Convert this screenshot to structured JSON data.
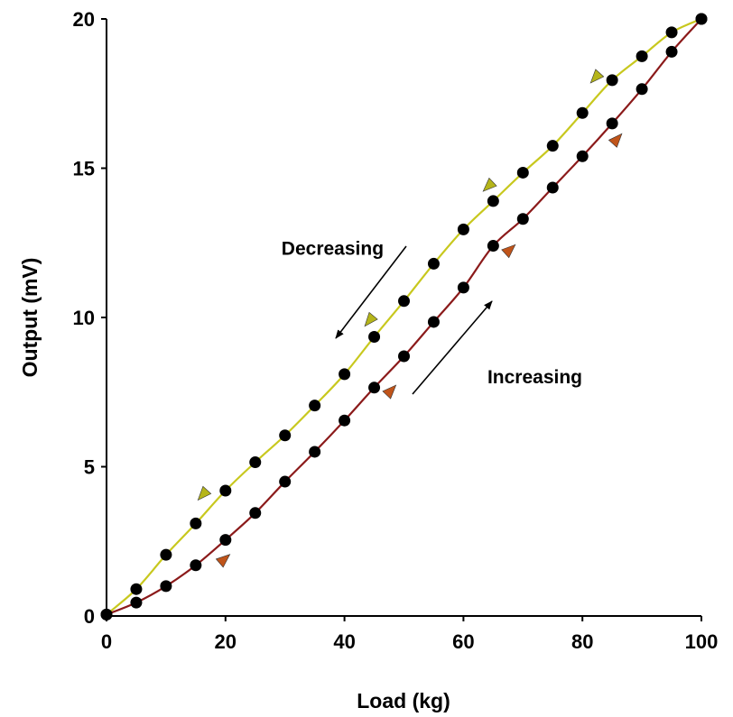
{
  "chart_data": {
    "type": "line",
    "xlabel": "Load (kg)",
    "ylabel": "Output (mV)",
    "xlim": [
      0,
      100
    ],
    "ylim": [
      0,
      20
    ],
    "xticks": [
      0,
      20,
      40,
      60,
      80,
      100
    ],
    "yticks": [
      0,
      5,
      10,
      15,
      20
    ],
    "grid": false,
    "series": [
      {
        "name": "Increasing",
        "color": "#8b1a1a",
        "marker_color": "#000000",
        "direction_arrow_color": "#c0541a",
        "x": [
          0,
          5,
          10,
          15,
          20,
          25,
          30,
          35,
          40,
          45,
          50,
          55,
          60,
          65,
          70,
          75,
          80,
          85,
          90,
          95,
          100
        ],
        "y": [
          0.05,
          0.45,
          1.0,
          1.7,
          2.55,
          3.45,
          4.5,
          5.5,
          6.55,
          7.65,
          8.7,
          9.85,
          11.0,
          12.4,
          13.3,
          14.35,
          15.4,
          16.5,
          17.65,
          18.9,
          20.0
        ]
      },
      {
        "name": "Decreasing",
        "color": "#c8c81e",
        "marker_color": "#000000",
        "direction_arrow_color": "#b5b51a",
        "x": [
          0,
          5,
          10,
          15,
          20,
          25,
          30,
          35,
          40,
          45,
          50,
          55,
          60,
          65,
          70,
          75,
          80,
          85,
          90,
          95,
          100
        ],
        "y": [
          0.05,
          0.9,
          2.05,
          3.1,
          4.2,
          5.15,
          6.05,
          7.05,
          8.1,
          9.35,
          10.55,
          11.8,
          12.95,
          13.9,
          14.85,
          15.75,
          16.85,
          17.95,
          18.75,
          19.55,
          20.0
        ]
      }
    ],
    "annotations": [
      {
        "text": "Decreasing",
        "x": 38,
        "y": 12.1
      },
      {
        "text": "Increasing",
        "x": 72,
        "y": 7.8
      }
    ]
  }
}
